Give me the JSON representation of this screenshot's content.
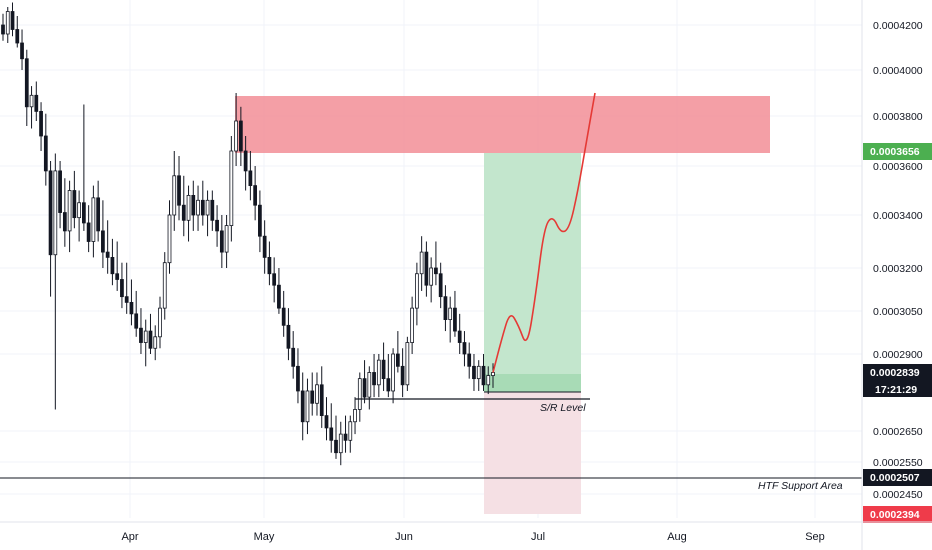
{
  "chart_data": {
    "type": "candlestick",
    "title": "",
    "price_axis": {
      "tick_labels": [
        "0.0004200",
        "0.0004000",
        "0.0003800",
        "0.0003600",
        "0.0003400",
        "0.0003200",
        "0.0003050",
        "0.0002900",
        "0.0002650",
        "0.0002550",
        "0.0002450"
      ],
      "scale": "log"
    },
    "time_axis": {
      "tick_labels": [
        "Apr",
        "May",
        "Jun",
        "Jul",
        "Aug",
        "Sep"
      ]
    },
    "current_price_tag": "0.0002839",
    "countdown_tag": "17:21:29",
    "target_price_tag": "0.0003656",
    "htf_support_price_tag": "0.0002507",
    "stop_price_tag": "0.0002394",
    "sr_level_label": "S/R Level",
    "htf_support_label": "HTF Support Area",
    "colors": {
      "bull": "#ffffff",
      "bear": "#131722",
      "resistance_zone": "#f28e96",
      "profit_zone": "#c3e6cd",
      "loss_zone": "#f5e0e4",
      "projection": "#e53935",
      "target_tag": "#4caf50",
      "stop_tag": "#ef3b4a",
      "price_tag": "#131722"
    },
    "candles": [
      [
        0.00042,
        0.000425,
        0.000413,
        0.000416
      ],
      [
        0.000416,
        0.000428,
        0.000412,
        0.000426
      ],
      [
        0.000426,
        0.00043,
        0.000415,
        0.000418
      ],
      [
        0.000418,
        0.000424,
        0.00041,
        0.000412
      ],
      [
        0.000412,
        0.000418,
        0.0004,
        0.000405
      ],
      [
        0.000405,
        0.000409,
        0.000376,
        0.000384
      ],
      [
        0.000384,
        0.000393,
        0.000375,
        0.000389
      ],
      [
        0.000389,
        0.000395,
        0.000378,
        0.000382
      ],
      [
        0.000382,
        0.000386,
        0.000366,
        0.000372
      ],
      [
        0.000372,
        0.000381,
        0.000352,
        0.000358
      ],
      [
        0.000358,
        0.000362,
        0.00031,
        0.000325
      ],
      [
        0.000325,
        0.000365,
        0.000272,
        0.000358
      ],
      [
        0.000358,
        0.000362,
        0.000335,
        0.000341
      ],
      [
        0.000341,
        0.000355,
        0.000328,
        0.000334
      ],
      [
        0.000334,
        0.000354,
        0.000326,
        0.00035
      ],
      [
        0.00035,
        0.000358,
        0.000335,
        0.000339
      ],
      [
        0.000339,
        0.00035,
        0.00033,
        0.000345
      ],
      [
        0.000345,
        0.000385,
        0.000334,
        0.000337
      ],
      [
        0.000337,
        0.000344,
        0.000326,
        0.00033
      ],
      [
        0.00033,
        0.000352,
        0.000324,
        0.000347
      ],
      [
        0.000347,
        0.000354,
        0.00033,
        0.000334
      ],
      [
        0.000334,
        0.000346,
        0.00032,
        0.000326
      ],
      [
        0.000326,
        0.000338,
        0.000318,
        0.000324
      ],
      [
        0.000324,
        0.000331,
        0.000314,
        0.000318
      ],
      [
        0.000318,
        0.00033,
        0.000312,
        0.000316
      ],
      [
        0.000316,
        0.000322,
        0.000306,
        0.00031
      ],
      [
        0.00031,
        0.000322,
        0.000304,
        0.000308
      ],
      [
        0.000308,
        0.000316,
        0.0003,
        0.000304
      ],
      [
        0.000304,
        0.000312,
        0.000296,
        0.000299
      ],
      [
        0.000299,
        0.000306,
        0.00029,
        0.000294
      ],
      [
        0.000294,
        0.000302,
        0.000286,
        0.000298
      ],
      [
        0.000298,
        0.000304,
        0.00029,
        0.000292
      ],
      [
        0.000292,
        0.0003,
        0.000288,
        0.000296
      ],
      [
        0.000296,
        0.00031,
        0.000292,
        0.000306
      ],
      [
        0.000306,
        0.000326,
        0.000302,
        0.000322
      ],
      [
        0.000322,
        0.000346,
        0.000318,
        0.00034
      ],
      [
        0.00034,
        0.000366,
        0.000334,
        0.000356
      ],
      [
        0.000356,
        0.000364,
        0.000338,
        0.000344
      ],
      [
        0.000344,
        0.000356,
        0.000332,
        0.000338
      ],
      [
        0.000338,
        0.000352,
        0.00033,
        0.000348
      ],
      [
        0.000348,
        0.000354,
        0.000334,
        0.00034
      ],
      [
        0.00034,
        0.000352,
        0.000334,
        0.000346
      ],
      [
        0.000346,
        0.000354,
        0.000336,
        0.00034
      ],
      [
        0.00034,
        0.00035,
        0.000332,
        0.000346
      ],
      [
        0.000346,
        0.00035,
        0.000334,
        0.000338
      ],
      [
        0.000338,
        0.000344,
        0.000328,
        0.000334
      ],
      [
        0.000334,
        0.00034,
        0.00032,
        0.000326
      ],
      [
        0.000326,
        0.00034,
        0.00032,
        0.000336
      ],
      [
        0.000336,
        0.000372,
        0.00033,
        0.000366
      ],
      [
        0.000366,
        0.00039,
        0.00036,
        0.000378
      ],
      [
        0.000378,
        0.000384,
        0.00036,
        0.000366
      ],
      [
        0.000366,
        0.000372,
        0.00035,
        0.000358
      ],
      [
        0.000358,
        0.000366,
        0.000346,
        0.000352
      ],
      [
        0.000352,
        0.00036,
        0.000338,
        0.000344
      ],
      [
        0.000344,
        0.00035,
        0.000326,
        0.000332
      ],
      [
        0.000332,
        0.000338,
        0.000318,
        0.000324
      ],
      [
        0.000324,
        0.00033,
        0.000314,
        0.000318
      ],
      [
        0.000318,
        0.000324,
        0.000308,
        0.000314
      ],
      [
        0.000314,
        0.00032,
        0.000304,
        0.000306
      ],
      [
        0.000306,
        0.000312,
        0.000296,
        0.0003
      ],
      [
        0.0003,
        0.000306,
        0.000288,
        0.000292
      ],
      [
        0.000292,
        0.000298,
        0.000282,
        0.000286
      ],
      [
        0.000286,
        0.000292,
        0.000274,
        0.000278
      ],
      [
        0.000278,
        0.000284,
        0.000262,
        0.000268
      ],
      [
        0.000268,
        0.000282,
        0.000264,
        0.000278
      ],
      [
        0.000278,
        0.000284,
        0.00027,
        0.000274
      ],
      [
        0.000274,
        0.000284,
        0.00027,
        0.00028
      ],
      [
        0.00028,
        0.000286,
        0.000266,
        0.00027
      ],
      [
        0.00027,
        0.000276,
        0.000262,
        0.000266
      ],
      [
        0.000266,
        0.000274,
        0.000258,
        0.000262
      ],
      [
        0.000262,
        0.00027,
        0.000256,
        0.000258
      ],
      [
        0.000258,
        0.000268,
        0.000254,
        0.000264
      ],
      [
        0.000264,
        0.00027,
        0.000258,
        0.000262
      ],
      [
        0.000262,
        0.00027,
        0.000258,
        0.000268
      ],
      [
        0.000268,
        0.000276,
        0.000264,
        0.000272
      ],
      [
        0.000272,
        0.000284,
        0.000268,
        0.000282
      ],
      [
        0.000282,
        0.000288,
        0.000274,
        0.000276
      ],
      [
        0.000276,
        0.000286,
        0.000272,
        0.000284
      ],
      [
        0.000284,
        0.00029,
        0.000276,
        0.00028
      ],
      [
        0.00028,
        0.00029,
        0.000276,
        0.000288
      ],
      [
        0.000288,
        0.000294,
        0.000278,
        0.000282
      ],
      [
        0.000282,
        0.00029,
        0.000276,
        0.000278
      ],
      [
        0.000278,
        0.000292,
        0.000274,
        0.00029
      ],
      [
        0.00029,
        0.000298,
        0.000284,
        0.000286
      ],
      [
        0.000286,
        0.000292,
        0.000276,
        0.00028
      ],
      [
        0.00028,
        0.000296,
        0.000278,
        0.000294
      ],
      [
        0.000294,
        0.00031,
        0.00029,
        0.000306
      ],
      [
        0.000306,
        0.000322,
        0.0003,
        0.000318
      ],
      [
        0.000318,
        0.000332,
        0.000312,
        0.000326
      ],
      [
        0.000326,
        0.00033,
        0.00031,
        0.000314
      ],
      [
        0.000314,
        0.000324,
        0.000308,
        0.00032
      ],
      [
        0.00032,
        0.00033,
        0.000314,
        0.000318
      ],
      [
        0.000318,
        0.000322,
        0.000306,
        0.00031
      ],
      [
        0.00031,
        0.000314,
        0.000298,
        0.000302
      ],
      [
        0.000302,
        0.00031,
        0.000294,
        0.000306
      ],
      [
        0.000306,
        0.000312,
        0.000296,
        0.000298
      ],
      [
        0.000298,
        0.000304,
        0.00029,
        0.000294
      ],
      [
        0.000294,
        0.000298,
        0.000286,
        0.00029
      ],
      [
        0.00029,
        0.000294,
        0.000282,
        0.000286
      ],
      [
        0.000286,
        0.00029,
        0.000278,
        0.000282
      ],
      [
        0.000282,
        0.000288,
        0.000278,
        0.000286
      ],
      [
        0.000286,
        0.00029,
        0.000278,
        0.00028
      ],
      [
        0.00028,
        0.000286,
        0.000277,
        0.000283
      ],
      [
        0.000283,
        0.000287,
        0.000279,
        0.000284
      ]
    ],
    "projection_path": [
      [
        0.000284,
        0
      ],
      [
        0.000295,
        1
      ],
      [
        0.000305,
        2
      ],
      [
        0.0003,
        3
      ],
      [
        0.000292,
        4
      ],
      [
        0.00031,
        5
      ],
      [
        0.000335,
        6
      ],
      [
        0.00034,
        7
      ],
      [
        0.000333,
        8
      ],
      [
        0.000335,
        9
      ],
      [
        0.00035,
        10
      ],
      [
        0.00037,
        11
      ],
      [
        0.00039,
        12
      ]
    ]
  }
}
